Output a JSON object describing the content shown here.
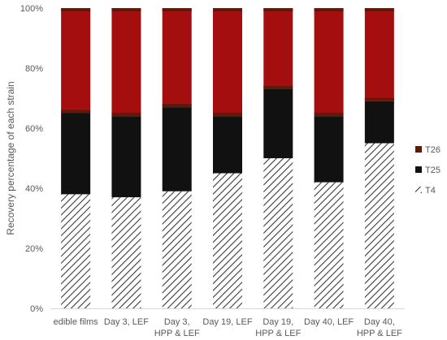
{
  "chart_data": {
    "type": "bar",
    "stacked": true,
    "normalized": true,
    "title": "",
    "xlabel": "",
    "ylabel": "Recovery percentage of each strain",
    "ylim": [
      0,
      100
    ],
    "yticks": [
      "0%",
      "20%",
      "40%",
      "60%",
      "80%",
      "100%"
    ],
    "grid": false,
    "legend_position": "right",
    "categories": [
      [
        "edible films"
      ],
      [
        "Day 3, LEF"
      ],
      [
        "Day 3,",
        "HPP & LEF"
      ],
      [
        "Day 19, LEF"
      ],
      [
        "Day 19,",
        "HPP & LEF"
      ],
      [
        "Day 40, LEF"
      ],
      [
        "Day 40,",
        "HPP & LEF"
      ]
    ],
    "series": [
      {
        "name": "T4",
        "values": [
          38,
          37,
          39,
          45,
          50,
          42,
          55
        ],
        "color": "#ffffff",
        "pattern": "diagonal-hatch",
        "pattern_color": "#3a3a3a"
      },
      {
        "name": "T25",
        "values": [
          27,
          27,
          28,
          19,
          23,
          22,
          14
        ],
        "color": "#111111"
      },
      {
        "name": "T26",
        "values": [
          35,
          36,
          33,
          36,
          27,
          36,
          31
        ],
        "color": "#a50e0e",
        "cap_color": "#5a1a0c"
      }
    ],
    "legend_order": [
      "T26",
      "T25",
      "T4"
    ],
    "colors": {
      "axis": "#d9d9d9",
      "text": "#595959"
    }
  }
}
